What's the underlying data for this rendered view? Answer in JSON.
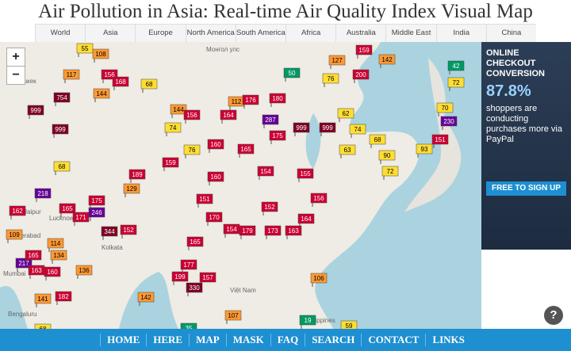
{
  "header": {
    "title": "Air Pollution in Asia: Real-time Air Quality Index Visual Map"
  },
  "nav": {
    "tabs": [
      "World",
      "Asia",
      "Europe",
      "North America",
      "South America",
      "Africa",
      "Australia",
      "Middle East",
      "India",
      "China"
    ]
  },
  "controls": {
    "zoom_in": "+",
    "zoom_out": "−",
    "help": "?"
  },
  "map": {
    "places": [
      "Бишкек",
      "Монгол улс",
      "Jaipur",
      "Lucknow",
      "Kolkata",
      "Hyderabad",
      "Mumbai",
      "Bengaluru",
      "Việt Nam",
      "Philippines"
    ],
    "markers": [
      55,
      108,
      117,
      156,
      168,
      144,
      68,
      754,
      999,
      999,
      144,
      74,
      156,
      76,
      159,
      68,
      189,
      129,
      218,
      246,
      175,
      165,
      171,
      162,
      344,
      152,
      109,
      114,
      134,
      217,
      165,
      163,
      160,
      136,
      141,
      182,
      68,
      199,
      177,
      157,
      330,
      107,
      35,
      19,
      59,
      106,
      112,
      176,
      180,
      287,
      164,
      999,
      999,
      160,
      165,
      155,
      160,
      154,
      151,
      170,
      175,
      152,
      156,
      164,
      179,
      173,
      163,
      154,
      165,
      142,
      50,
      76,
      200,
      142,
      159,
      127,
      62,
      74,
      68,
      90,
      72,
      93,
      151,
      230,
      70,
      72,
      42,
      63
    ]
  },
  "ad": {
    "headline": "ONLINE CHECKOUT CONVERSION",
    "stat": "87.8%",
    "body": "shoppers are conducting purchases more via PayPal",
    "button": "FREE TO SIGN UP"
  },
  "footer": {
    "links": [
      "HOME",
      "HERE",
      "MAP",
      "MASK",
      "FAQ",
      "SEARCH",
      "CONTACT",
      "LINKS"
    ]
  }
}
